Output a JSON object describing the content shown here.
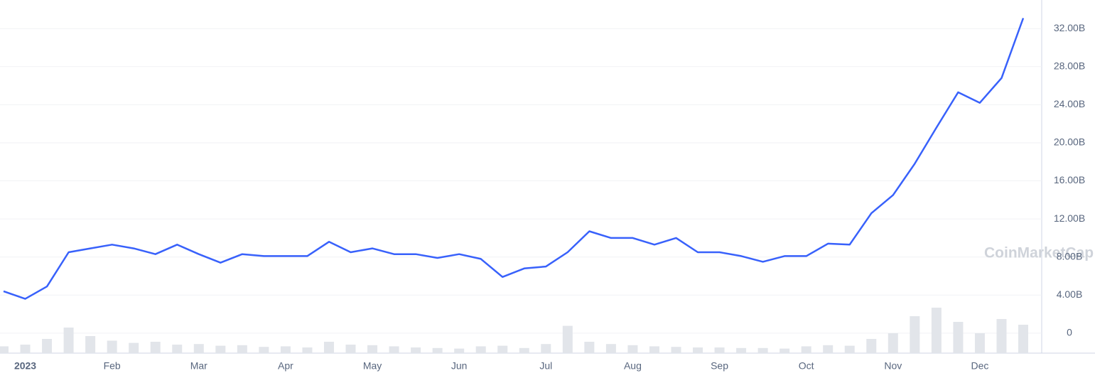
{
  "chart_data": {
    "type": "line",
    "categories": [
      null,
      "2023",
      null,
      null,
      null,
      "Feb",
      null,
      null,
      null,
      "Mar",
      null,
      null,
      null,
      "Apr",
      null,
      null,
      null,
      "May",
      null,
      null,
      null,
      "Jun",
      null,
      null,
      null,
      "Jul",
      null,
      null,
      null,
      "Aug",
      null,
      null,
      null,
      "Sep",
      null,
      null,
      null,
      "Oct",
      null,
      null,
      null,
      "Nov",
      null,
      null,
      null,
      "Dec",
      null,
      null
    ],
    "series": [
      {
        "color": "#3861fb",
        "values": [
          4.4,
          3.6,
          4.9,
          8.5,
          8.9,
          9.3,
          8.9,
          8.3,
          9.3,
          8.3,
          7.4,
          8.3,
          8.1,
          8.1,
          8.1,
          9.6,
          8.5,
          8.9,
          8.3,
          8.3,
          7.9,
          8.3,
          7.8,
          5.9,
          6.8,
          7.0,
          8.5,
          10.7,
          10.0,
          10.0,
          9.3,
          10.0,
          8.5,
          8.5,
          8.1,
          7.5,
          8.1,
          8.1,
          9.4,
          9.3,
          12.6,
          14.5,
          17.8,
          21.6,
          25.3,
          24.2,
          26.8,
          33.1
        ]
      }
    ],
    "volume": {
      "color": "#e2e5ea",
      "ylim": [
        0,
        10
      ],
      "values": [
        1.2,
        1.5,
        2.5,
        4.5,
        3.0,
        2.2,
        1.8,
        2.0,
        1.5,
        1.6,
        1.3,
        1.4,
        1.1,
        1.2,
        1.0,
        2.0,
        1.5,
        1.4,
        1.2,
        1.0,
        0.9,
        0.8,
        1.2,
        1.3,
        0.9,
        1.6,
        4.8,
        2.0,
        1.6,
        1.4,
        1.2,
        1.1,
        1.0,
        1.0,
        0.9,
        0.9,
        0.8,
        1.2,
        1.4,
        1.3,
        2.5,
        3.5,
        6.5,
        8.0,
        5.5,
        3.5,
        6.0,
        5.0
      ]
    },
    "ylim": [
      -2.1,
      35
    ],
    "yticks": [
      0,
      {
        "value": 4,
        "label": "4.00B"
      },
      {
        "value": 8,
        "label": "8.00B"
      },
      {
        "value": 12,
        "label": "12.00B"
      },
      {
        "value": 16,
        "label": "16.00B"
      },
      {
        "value": 20,
        "label": "20.00B"
      },
      {
        "value": 24,
        "label": "24.00B"
      },
      {
        "value": 28,
        "label": "28.00B"
      },
      {
        "value": 32,
        "label": "32.00B"
      }
    ],
    "grid": true,
    "watermark": "CoinMarketCap"
  }
}
